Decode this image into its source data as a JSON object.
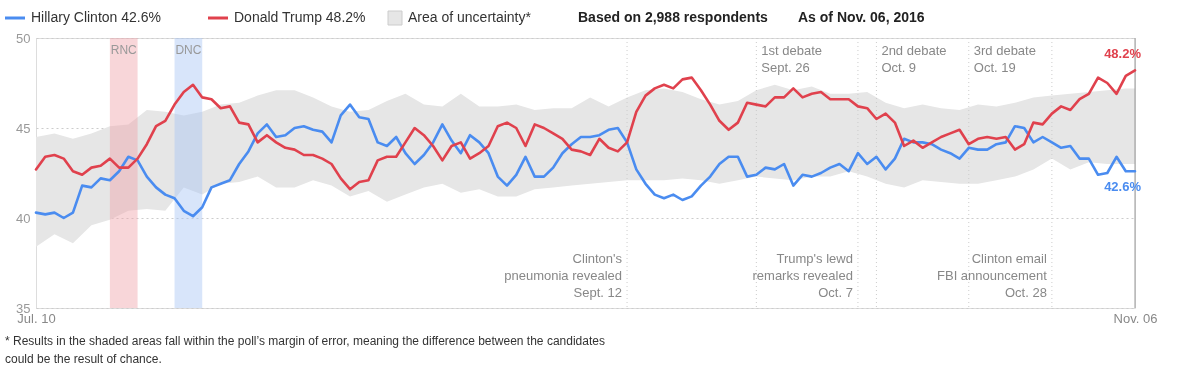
{
  "chart_data": {
    "type": "line",
    "x": [
      "2016-07-10",
      "2016-07-11",
      "2016-07-12",
      "2016-07-13",
      "2016-07-14",
      "2016-07-15",
      "2016-07-16",
      "2016-07-17",
      "2016-07-18",
      "2016-07-19",
      "2016-07-20",
      "2016-07-21",
      "2016-07-22",
      "2016-07-23",
      "2016-07-24",
      "2016-07-25",
      "2016-07-26",
      "2016-07-27",
      "2016-07-28",
      "2016-07-29",
      "2016-07-30",
      "2016-07-31",
      "2016-08-01",
      "2016-08-02",
      "2016-08-03",
      "2016-08-04",
      "2016-08-05",
      "2016-08-06",
      "2016-08-07",
      "2016-08-08",
      "2016-08-09",
      "2016-08-10",
      "2016-08-11",
      "2016-08-12",
      "2016-08-13",
      "2016-08-14",
      "2016-08-15",
      "2016-08-16",
      "2016-08-17",
      "2016-08-18",
      "2016-08-19",
      "2016-08-20",
      "2016-08-21",
      "2016-08-22",
      "2016-08-23",
      "2016-08-24",
      "2016-08-25",
      "2016-08-26",
      "2016-08-27",
      "2016-08-28",
      "2016-08-29",
      "2016-08-30",
      "2016-08-31",
      "2016-09-01",
      "2016-09-02",
      "2016-09-03",
      "2016-09-04",
      "2016-09-05",
      "2016-09-06",
      "2016-09-07",
      "2016-09-08",
      "2016-09-09",
      "2016-09-10",
      "2016-09-11",
      "2016-09-12",
      "2016-09-13",
      "2016-09-14",
      "2016-09-15",
      "2016-09-16",
      "2016-09-17",
      "2016-09-18",
      "2016-09-19",
      "2016-09-20",
      "2016-09-21",
      "2016-09-22",
      "2016-09-23",
      "2016-09-24",
      "2016-09-25",
      "2016-09-26",
      "2016-09-27",
      "2016-09-28",
      "2016-09-29",
      "2016-09-30",
      "2016-10-01",
      "2016-10-02",
      "2016-10-03",
      "2016-10-04",
      "2016-10-05",
      "2016-10-06",
      "2016-10-07",
      "2016-10-08",
      "2016-10-09",
      "2016-10-10",
      "2016-10-11",
      "2016-10-12",
      "2016-10-13",
      "2016-10-14",
      "2016-10-15",
      "2016-10-16",
      "2016-10-17",
      "2016-10-18",
      "2016-10-19",
      "2016-10-20",
      "2016-10-21",
      "2016-10-22",
      "2016-10-23",
      "2016-10-24",
      "2016-10-25",
      "2016-10-26",
      "2016-10-27",
      "2016-10-28",
      "2016-10-29",
      "2016-10-30",
      "2016-10-31",
      "2016-11-01",
      "2016-11-02",
      "2016-11-03",
      "2016-11-04",
      "2016-11-05",
      "2016-11-06"
    ],
    "series": [
      {
        "name": "Area of uncertainty*",
        "type": "area",
        "color": "#e6e6e6",
        "x": [
          "2016-07-10",
          "2016-07-12",
          "2016-07-14",
          "2016-07-16",
          "2016-07-18",
          "2016-07-20",
          "2016-07-22",
          "2016-07-24",
          "2016-07-26",
          "2016-07-28",
          "2016-07-30",
          "2016-08-01",
          "2016-08-03",
          "2016-08-05",
          "2016-08-07",
          "2016-08-09",
          "2016-08-11",
          "2016-08-13",
          "2016-08-15",
          "2016-08-17",
          "2016-08-19",
          "2016-08-21",
          "2016-08-23",
          "2016-08-25",
          "2016-08-27",
          "2016-08-29",
          "2016-08-31",
          "2016-09-02",
          "2016-09-04",
          "2016-09-06",
          "2016-09-08",
          "2016-09-10",
          "2016-09-12",
          "2016-09-14",
          "2016-09-16",
          "2016-09-18",
          "2016-09-20",
          "2016-09-22",
          "2016-09-24",
          "2016-09-26",
          "2016-09-28",
          "2016-09-30",
          "2016-10-02",
          "2016-10-04",
          "2016-10-06",
          "2016-10-08",
          "2016-10-10",
          "2016-10-12",
          "2016-10-14",
          "2016-10-16",
          "2016-10-18",
          "2016-10-20",
          "2016-10-22",
          "2016-10-24",
          "2016-10-26",
          "2016-10-28",
          "2016-10-30",
          "2016-11-01",
          "2016-11-03",
          "2016-11-05",
          "2016-11-06"
        ],
        "values": [
          null,
          null,
          null,
          null,
          null,
          null,
          null,
          null,
          null,
          null,
          null,
          null,
          null,
          null,
          null,
          null,
          null,
          null,
          null,
          null,
          null,
          null,
          null,
          null,
          null,
          null,
          null,
          null,
          null,
          null,
          null,
          null,
          null,
          null,
          null,
          null,
          null,
          null,
          null,
          null,
          null,
          null,
          null,
          null,
          null,
          null,
          null,
          null,
          null,
          null,
          null,
          null,
          null,
          null,
          null,
          null,
          null,
          null,
          null,
          null,
          null
        ],
        "lower": [
          38.4,
          39.1,
          38.6,
          39.6,
          39.9,
          40.4,
          40.5,
          40.4,
          41.7,
          41.3,
          41.9,
          42.0,
          42.3,
          41.7,
          41.7,
          42.1,
          41.8,
          41.2,
          41.5,
          40.9,
          41.3,
          41.7,
          41.9,
          41.4,
          41.6,
          41.2,
          41.2,
          41.6,
          41.7,
          41.8,
          41.9,
          42.0,
          42.1,
          42.1,
          42.1,
          42.2,
          42.1,
          41.9,
          42.1,
          42.3,
          42.2,
          42.1,
          42.3,
          42.3,
          42.6,
          42.3,
          41.9,
          41.7,
          42.1,
          42.0,
          41.9,
          41.9,
          42.1,
          42.3,
          42.7,
          43.3,
          42.7,
          43.1,
          43.0,
          43.0,
          43.0
        ],
        "upper": [
          44.5,
          44.7,
          44.4,
          44.7,
          45.1,
          45.2,
          46.0,
          45.9,
          45.7,
          45.9,
          46.3,
          46.4,
          46.8,
          47.1,
          47.1,
          46.7,
          46.2,
          45.9,
          46.0,
          46.5,
          46.9,
          46.3,
          46.2,
          46.9,
          46.2,
          46.2,
          46.3,
          46.0,
          46.1,
          46.1,
          46.7,
          46.2,
          46.7,
          47.1,
          47.2,
          47.0,
          46.6,
          46.3,
          46.5,
          47.1,
          47.4,
          47.1,
          47.3,
          46.9,
          46.9,
          47.0,
          46.4,
          46.1,
          46.3,
          46.1,
          46.0,
          46.3,
          46.2,
          46.4,
          46.7,
          46.8,
          46.9,
          47.0,
          47.1,
          47.2,
          47.2
        ]
      },
      {
        "name": "Hillary Clinton 42.6%",
        "color": "#4a8cf0",
        "values": [
          40.3,
          40.2,
          40.3,
          40.0,
          40.3,
          41.8,
          41.7,
          42.2,
          42.1,
          42.6,
          43.4,
          43.2,
          42.3,
          41.7,
          41.3,
          41.1,
          40.4,
          40.1,
          40.6,
          41.7,
          41.9,
          42.1,
          43.0,
          43.7,
          44.7,
          45.2,
          44.5,
          44.6,
          45.0,
          45.1,
          44.9,
          44.8,
          44.2,
          45.7,
          46.3,
          45.6,
          45.5,
          44.2,
          44.0,
          44.5,
          43.6,
          43.0,
          43.5,
          44.2,
          45.2,
          44.3,
          43.6,
          44.6,
          44.2,
          43.6,
          42.3,
          41.8,
          42.4,
          43.4,
          42.3,
          42.3,
          42.8,
          43.6,
          44.1,
          44.5,
          44.5,
          44.6,
          44.9,
          45.0,
          44.2,
          42.7,
          41.9,
          41.3,
          41.1,
          41.3,
          41.0,
          41.2,
          41.8,
          42.3,
          43.0,
          43.4,
          43.4,
          42.3,
          42.4,
          42.8,
          42.7,
          43.0,
          41.8,
          42.4,
          42.3,
          42.5,
          42.8,
          43.0,
          42.6,
          43.6,
          43.0,
          43.4,
          42.7,
          43.3,
          44.4,
          44.2,
          44.2,
          44.1,
          43.8,
          43.6,
          43.3,
          43.9,
          43.8,
          43.8,
          44.1,
          44.2,
          45.1,
          45.0,
          44.2,
          44.5,
          44.2,
          43.9,
          44.0,
          43.3,
          43.3,
          42.4,
          42.5,
          43.4,
          42.6,
          42.6
        ]
      },
      {
        "name": "Donald Trump 48.2%",
        "color": "#e0414d",
        "values": [
          42.7,
          43.4,
          43.5,
          43.3,
          42.6,
          42.4,
          42.8,
          42.9,
          43.3,
          42.8,
          42.8,
          43.3,
          44.1,
          45.1,
          45.4,
          46.3,
          47.0,
          47.4,
          46.7,
          46.6,
          46.1,
          46.2,
          45.3,
          45.2,
          44.2,
          44.6,
          44.2,
          43.9,
          43.8,
          43.5,
          43.5,
          43.3,
          43.0,
          42.2,
          41.6,
          42.0,
          42.1,
          43.2,
          43.4,
          43.4,
          44.2,
          45.0,
          44.6,
          44.0,
          43.2,
          44.0,
          44.2,
          43.3,
          43.6,
          44.0,
          45.1,
          45.3,
          45.0,
          44.0,
          45.2,
          45.0,
          44.7,
          44.4,
          43.8,
          43.7,
          43.5,
          44.4,
          43.9,
          43.7,
          44.2,
          45.9,
          46.8,
          47.2,
          47.4,
          47.2,
          47.7,
          47.8,
          47.1,
          46.3,
          45.4,
          44.9,
          45.3,
          46.4,
          46.3,
          46.2,
          46.7,
          46.7,
          47.2,
          46.7,
          46.9,
          47.0,
          46.6,
          46.6,
          46.6,
          46.2,
          46.1,
          45.5,
          45.8,
          45.3,
          44.0,
          44.3,
          43.9,
          44.2,
          44.5,
          44.7,
          44.9,
          44.1,
          44.4,
          44.5,
          44.4,
          44.5,
          43.8,
          44.1,
          45.3,
          45.2,
          45.8,
          46.2,
          46.0,
          46.6,
          46.9,
          47.8,
          47.5,
          46.9,
          47.9,
          48.2
        ]
      }
    ],
    "xlim": [
      "2016-07-10",
      "2016-11-06"
    ],
    "xticks": [
      {
        "value": "2016-07-10",
        "label": "Jul. 10"
      },
      {
        "value": "2016-11-06",
        "label": "Nov. 06"
      }
    ],
    "ylim": [
      35,
      50
    ],
    "yticks": [
      35,
      40,
      45,
      50
    ],
    "grid": "y",
    "legend": "top left",
    "line_style": "solid",
    "bands": [
      {
        "axis": "x",
        "from": "2016-07-18",
        "to": "2016-07-21",
        "label": "RNC",
        "color": "#f0a5aa"
      },
      {
        "axis": "x",
        "from": "2016-07-25",
        "to": "2016-07-28",
        "label": "DNC",
        "color": "#a9c6f5"
      }
    ],
    "ref_lines": [
      {
        "axis": "x",
        "value": "2016-09-12",
        "label": "Clinton's\npneumonia revealed\nSept. 12",
        "color": "#cccccc",
        "line_style": "dotted"
      },
      {
        "axis": "x",
        "value": "2016-09-26",
        "label": "1st debate\nSept. 26",
        "color": "#cccccc",
        "line_style": "dotted"
      },
      {
        "axis": "x",
        "value": "2016-10-07",
        "label": "Trump's lewd\nremarks revealed\nOct. 7",
        "color": "#cccccc",
        "line_style": "dotted"
      },
      {
        "axis": "x",
        "value": "2016-10-09",
        "label": "2nd debate\nOct. 9",
        "color": "#cccccc",
        "line_style": "dotted"
      },
      {
        "axis": "x",
        "value": "2016-10-19",
        "label": "3rd debate\nOct. 19",
        "color": "#cccccc",
        "line_style": "dotted"
      },
      {
        "axis": "x",
        "value": "2016-10-28",
        "label": "Clinton email\nFBI announcement\nOct. 28",
        "color": "#cccccc",
        "line_style": "dotted"
      },
      {
        "axis": "x",
        "value": "2016-11-06",
        "color": "#999999",
        "line_style": "solid"
      }
    ],
    "annotations": [
      {
        "text": "42.6%",
        "x": "2016-11-06",
        "y": 42.6
      },
      {
        "text": "48.2%",
        "x": "2016-11-06",
        "y": 48.2
      },
      "Based on 2,988 respondents",
      "As of Nov. 06, 2016",
      "* Results in the shaded areas fall within the poll’s margin of error, meaning the difference between the candidates\ncould be the result of chance."
    ]
  }
}
